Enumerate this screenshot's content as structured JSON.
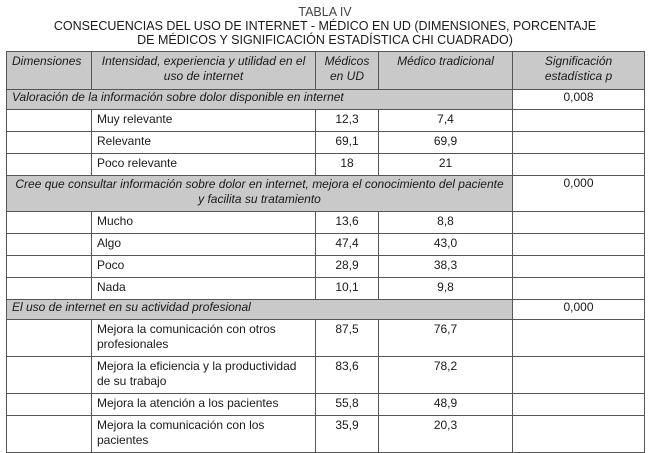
{
  "caption": {
    "label": "TABLA IV",
    "line1": "CONSECUENCIAS DEL USO DE INTERNET - MÉDICO EN UD (DIMENSIONES, PORCENTAJE",
    "line2": "DE MÉDICOS Y SIGNIFICACIÓN ESTADÍSTICA CHI CUADRADO)"
  },
  "headers": [
    "Dimensiones",
    "Intensidad, experiencia y utilidad en el uso de internet",
    "Médicos en UD",
    "Médico tradicional",
    "Significación estadística p"
  ],
  "sections": [
    {
      "title": "Valoración de la información sobre dolor disponible en internet",
      "p": "0,008",
      "rows": [
        {
          "label": "Muy relevante",
          "ud": "12,3",
          "trad": "7,4"
        },
        {
          "label": "Relevante",
          "ud": "69,1",
          "trad": "69,9"
        },
        {
          "label": "Poco relevante",
          "ud": "18",
          "trad": "21"
        }
      ]
    },
    {
      "title": "Cree que consultar información sobre dolor en internet, mejora el conocimiento del paciente y facilita su tratamiento",
      "p": "0,000",
      "rows": [
        {
          "label": "Mucho",
          "ud": "13,6",
          "trad": "8,8"
        },
        {
          "label": "Algo",
          "ud": "47,4",
          "trad": "43,0"
        },
        {
          "label": "Poco",
          "ud": "28,9",
          "trad": "38,3"
        },
        {
          "label": "Nada",
          "ud": "10,1",
          "trad": "9,8"
        }
      ]
    },
    {
      "title": "El uso de internet en su actividad profesional",
      "p": "0,000",
      "rows": [
        {
          "label": "Mejora la comunicación con otros profesionales",
          "ud": "87,5",
          "trad": "76,7"
        },
        {
          "label": "Mejora la eficiencia y la productividad de su trabajo",
          "ud": "83,6",
          "trad": "78,2"
        },
        {
          "label": "Mejora la atención a los pacientes",
          "ud": "55,8",
          "trad": "48,9"
        },
        {
          "label": "Mejora la comunicación con los pacientes",
          "ud": "35,9",
          "trad": "20,3"
        }
      ]
    }
  ]
}
